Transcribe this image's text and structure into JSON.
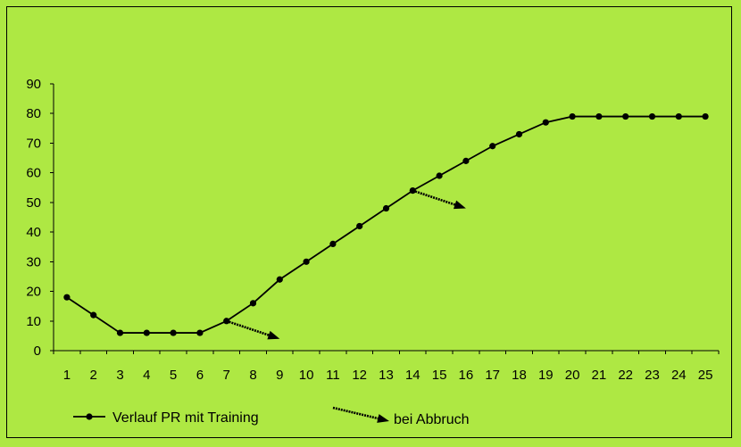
{
  "chart_data": {
    "type": "line",
    "x": [
      1,
      2,
      3,
      4,
      5,
      6,
      7,
      8,
      9,
      10,
      11,
      12,
      13,
      14,
      15,
      16,
      17,
      18,
      19,
      20,
      21,
      22,
      23,
      24,
      25
    ],
    "series": [
      {
        "name": "Verlauf PR mit Training",
        "values": [
          18,
          12,
          6,
          6,
          6,
          6,
          10,
          16,
          24,
          30,
          36,
          42,
          48,
          54,
          59,
          64,
          69,
          73,
          77,
          79,
          79,
          79,
          79,
          79,
          79
        ]
      }
    ],
    "arrows": [
      {
        "from": [
          7,
          10
        ],
        "to": [
          9,
          4
        ]
      },
      {
        "from": [
          14,
          54
        ],
        "to": [
          16,
          48
        ]
      }
    ],
    "ylim": [
      0,
      90
    ],
    "yticks": [
      0,
      10,
      20,
      30,
      40,
      50,
      60,
      70,
      80,
      90
    ],
    "xticks": [
      1,
      2,
      3,
      4,
      5,
      6,
      7,
      8,
      9,
      10,
      11,
      12,
      13,
      14,
      15,
      16,
      17,
      18,
      19,
      20,
      21,
      22,
      23,
      24,
      25
    ],
    "grid": false,
    "legend_position": "bottom",
    "legend": [
      {
        "label": "Verlauf PR mit Training",
        "marker": "line-with-dot"
      },
      {
        "label": "bei Abbruch",
        "marker": "arrow"
      }
    ],
    "colors": {
      "background": "#aee843",
      "line": "#000000"
    }
  }
}
